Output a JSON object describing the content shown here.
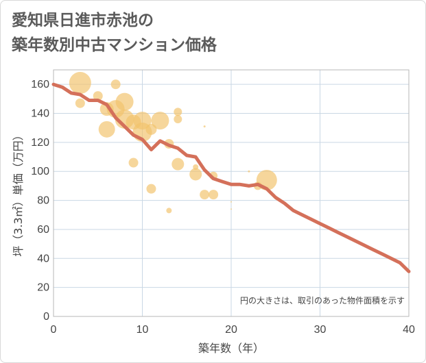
{
  "page": {
    "title_line1": "愛知県日進市赤池の",
    "title_line2": "築年数別中古マンション価格"
  },
  "chart_data": {
    "type": "scatter",
    "title": "愛知県日進市赤池の 築年数別中古マンション価格",
    "xlabel": "築年数（年）",
    "ylabel": "坪（3.3㎡）単価（万円）",
    "xlim": [
      0,
      40
    ],
    "ylim": [
      0,
      170
    ],
    "xticks": [
      0,
      10,
      20,
      30,
      40
    ],
    "yticks": [
      0,
      20,
      40,
      60,
      80,
      100,
      120,
      140,
      160
    ],
    "grid": true,
    "note": "円の大きさは、取引のあった物件面積を示す",
    "colors": {
      "bubble": "#f2c26b",
      "line": "#d4705a",
      "grid": "#c9d7e4",
      "plot_border": "#b7b7b7"
    },
    "bubbles": [
      {
        "x": 3,
        "y": 161,
        "s": 16
      },
      {
        "x": 3,
        "y": 147,
        "s": 7
      },
      {
        "x": 5,
        "y": 152,
        "s": 7
      },
      {
        "x": 6,
        "y": 143,
        "s": 10
      },
      {
        "x": 6,
        "y": 129,
        "s": 12
      },
      {
        "x": 7,
        "y": 160,
        "s": 7
      },
      {
        "x": 7,
        "y": 143,
        "s": 13
      },
      {
        "x": 8,
        "y": 148,
        "s": 13
      },
      {
        "x": 8,
        "y": 136,
        "s": 14
      },
      {
        "x": 9,
        "y": 106,
        "s": 7
      },
      {
        "x": 9,
        "y": 134,
        "s": 11
      },
      {
        "x": 10,
        "y": 135,
        "s": 13
      },
      {
        "x": 10,
        "y": 127,
        "s": 14
      },
      {
        "x": 11,
        "y": 129,
        "s": 8
      },
      {
        "x": 11,
        "y": 88,
        "s": 7
      },
      {
        "x": 12,
        "y": 135,
        "s": 13
      },
      {
        "x": 13,
        "y": 119,
        "s": 7
      },
      {
        "x": 13,
        "y": 73,
        "s": 4
      },
      {
        "x": 14,
        "y": 141,
        "s": 6
      },
      {
        "x": 14,
        "y": 136,
        "s": 6
      },
      {
        "x": 14,
        "y": 105,
        "s": 9
      },
      {
        "x": 16,
        "y": 98,
        "s": 9
      },
      {
        "x": 16,
        "y": 103,
        "s": 4
      },
      {
        "x": 17,
        "y": 131,
        "s": 1.5
      },
      {
        "x": 17,
        "y": 84,
        "s": 7
      },
      {
        "x": 18,
        "y": 84,
        "s": 7
      },
      {
        "x": 18,
        "y": 97,
        "s": 6
      },
      {
        "x": 20,
        "y": 79,
        "s": 1
      },
      {
        "x": 20,
        "y": 74,
        "s": 1
      },
      {
        "x": 22,
        "y": 100,
        "s": 1.5
      },
      {
        "x": 23,
        "y": 90,
        "s": 6
      },
      {
        "x": 24,
        "y": 94,
        "s": 15
      }
    ],
    "series": [
      {
        "type": "line",
        "x": [
          0,
          1,
          2,
          3,
          4,
          5,
          6,
          7,
          8,
          9,
          10,
          11,
          12,
          13,
          14,
          15,
          16,
          17,
          18,
          19,
          20,
          21,
          22,
          23,
          24,
          25,
          26,
          27,
          28,
          29,
          30,
          31,
          32,
          33,
          34,
          35,
          36,
          37,
          38,
          39,
          40
        ],
        "y": [
          160,
          158,
          154,
          153,
          149,
          149,
          146,
          137,
          131,
          125,
          122,
          115,
          121,
          118,
          116,
          111,
          110,
          101,
          95,
          93,
          91,
          91,
          90,
          91,
          88,
          82,
          78,
          73,
          70,
          67,
          64,
          61,
          58,
          55,
          52,
          49,
          46,
          43,
          40,
          37,
          31
        ]
      }
    ]
  }
}
